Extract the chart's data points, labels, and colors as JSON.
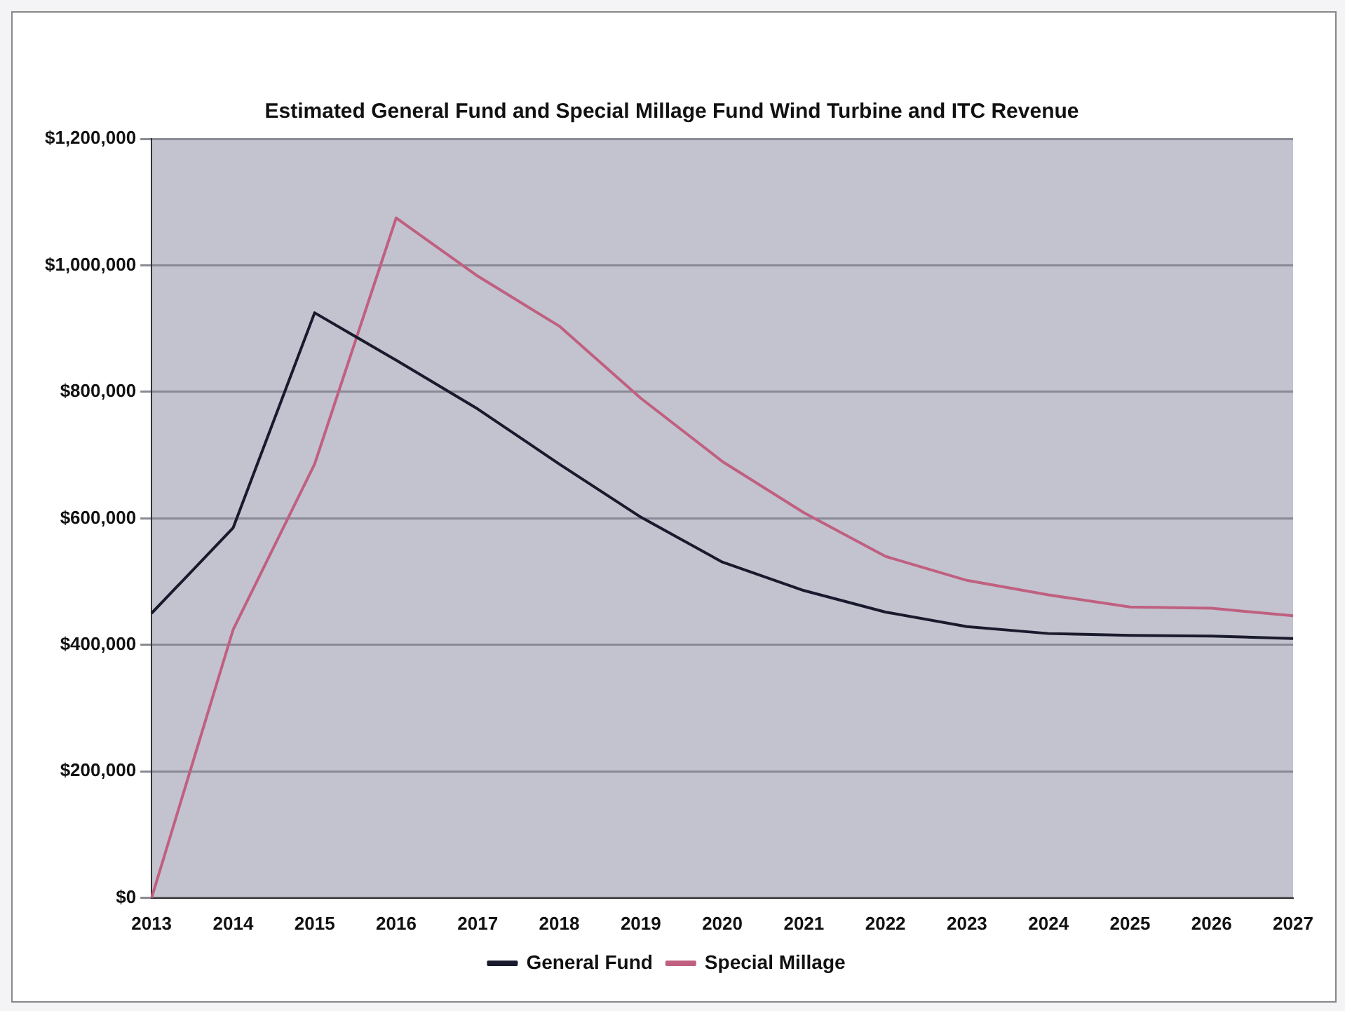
{
  "chart_data": {
    "type": "line",
    "title": "Estimated General Fund and Special Millage Fund Wind Turbine and ITC Revenue",
    "categories": [
      "2013",
      "2014",
      "2015",
      "2016",
      "2017",
      "2018",
      "2019",
      "2020",
      "2021",
      "2022",
      "2023",
      "2024",
      "2025",
      "2026",
      "2027"
    ],
    "series": [
      {
        "name": "General Fund",
        "color": "#1a1a2e",
        "values": [
          450000,
          585000,
          925000,
          850000,
          773000,
          686000,
          602000,
          531000,
          486000,
          452000,
          429000,
          418000,
          415000,
          414000,
          410000
        ]
      },
      {
        "name": "Special Millage",
        "color": "#c06080",
        "values": [
          0,
          424000,
          686000,
          1075000,
          983000,
          904000,
          790000,
          690000,
          609000,
          540000,
          502000,
          479000,
          460000,
          458000,
          446000
        ]
      }
    ],
    "ylim": [
      0,
      1200000
    ],
    "yticks": [
      {
        "value": 0,
        "label": "$0"
      },
      {
        "value": 200000,
        "label": "$200,000"
      },
      {
        "value": 400000,
        "label": "$400,000"
      },
      {
        "value": 600000,
        "label": "$600,000"
      },
      {
        "value": 800000,
        "label": "$800,000"
      },
      {
        "value": 1000000,
        "label": "$1,000,000"
      },
      {
        "value": 1200000,
        "label": "$1,200,000"
      }
    ],
    "grid": "y",
    "legend": "bottom",
    "marker": "none"
  }
}
